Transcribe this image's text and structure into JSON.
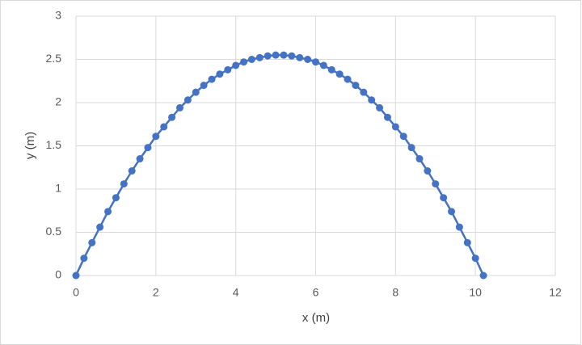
{
  "chart_data": {
    "type": "scatter-line",
    "xlabel": "x (m)",
    "ylabel": "y (m)",
    "xlim": [
      0,
      12
    ],
    "xticks": [
      0,
      2,
      4,
      6,
      8,
      10,
      12
    ],
    "ylim": [
      0,
      3
    ],
    "yticks": [
      0,
      0.5,
      1,
      1.5,
      2,
      2.5,
      3
    ],
    "grid": true,
    "series": [
      {
        "color": "#4472c4",
        "x": [
          0,
          0.2,
          0.4,
          0.6,
          0.8,
          1.0,
          1.2,
          1.4,
          1.6,
          1.8,
          2.0,
          2.2,
          2.4,
          2.6,
          2.8,
          3.0,
          3.2,
          3.4,
          3.6,
          3.8,
          4.0,
          4.2,
          4.4,
          4.6,
          4.8,
          5.0,
          5.2,
          5.4,
          5.6,
          5.8,
          6.0,
          6.2,
          6.4,
          6.6,
          6.8,
          7.0,
          7.2,
          7.4,
          7.6,
          7.8,
          8.0,
          8.2,
          8.4,
          8.6,
          8.8,
          9.0,
          9.2,
          9.4,
          9.6,
          9.8,
          10.0,
          10.2
        ],
        "values": [
          0,
          0.2,
          0.38,
          0.56,
          0.74,
          0.9,
          1.06,
          1.21,
          1.35,
          1.48,
          1.61,
          1.72,
          1.83,
          1.94,
          2.03,
          2.12,
          2.2,
          2.27,
          2.33,
          2.38,
          2.43,
          2.47,
          2.5,
          2.52,
          2.54,
          2.55,
          2.55,
          2.54,
          2.52,
          2.5,
          2.47,
          2.43,
          2.38,
          2.33,
          2.27,
          2.2,
          2.12,
          2.03,
          1.94,
          1.83,
          1.72,
          1.61,
          1.48,
          1.35,
          1.21,
          1.06,
          0.9,
          0.74,
          0.56,
          0.38,
          0.2,
          0
        ]
      }
    ]
  }
}
